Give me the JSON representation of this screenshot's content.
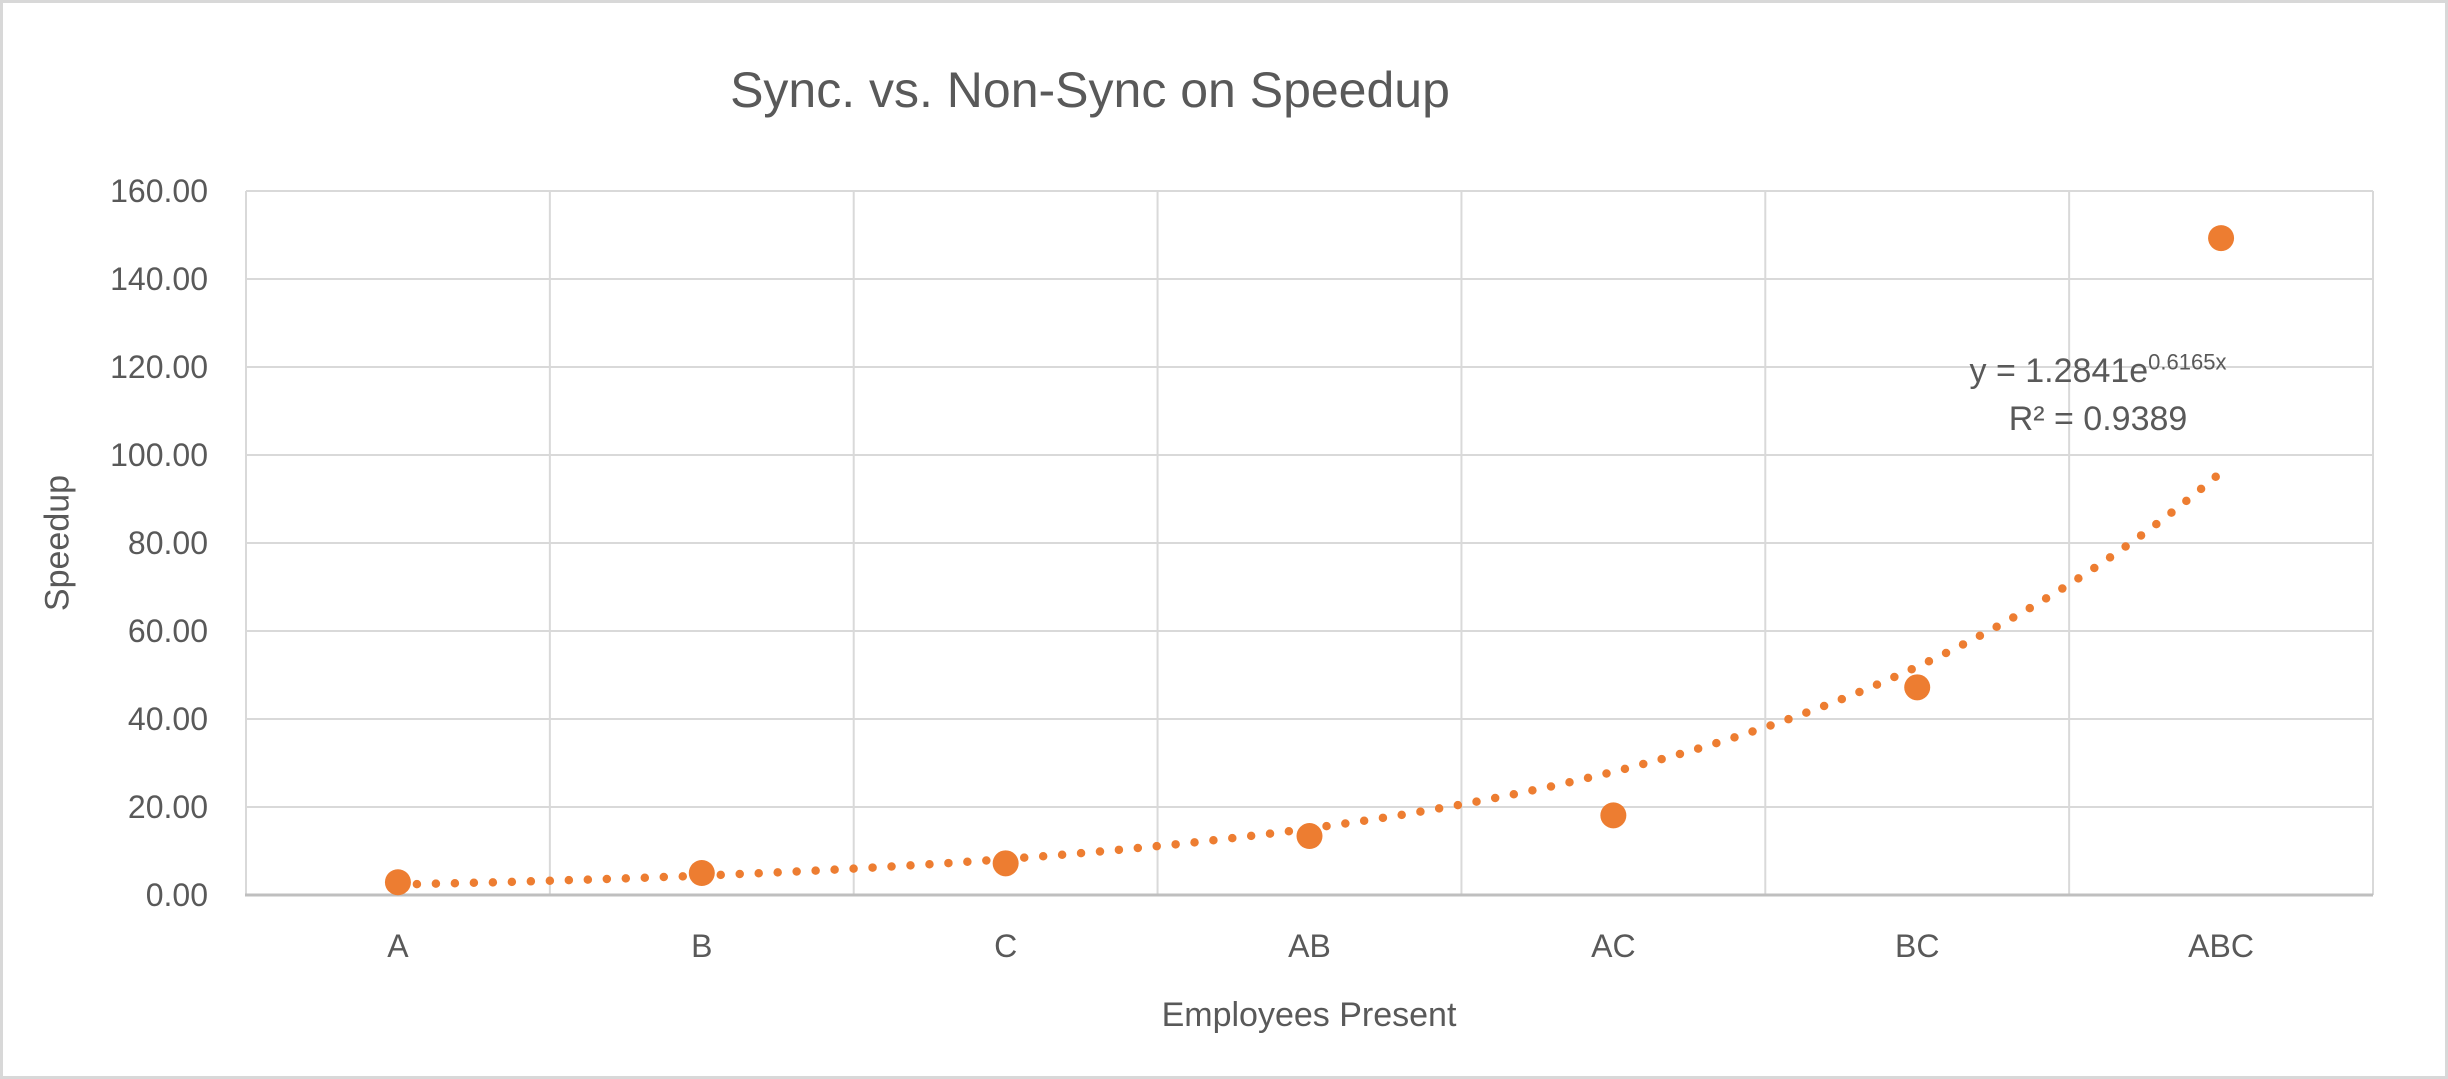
{
  "window": {
    "background_color": "#FFFFFF",
    "frame_border_color": "#D8D8D8"
  },
  "chart_data": {
    "type": "scatter",
    "title": "Sync. vs. Non-Sync on Speedup",
    "xlabel": "Employees Present",
    "ylabel": "Speedup",
    "categories": [
      "A",
      "B",
      "C",
      "AB",
      "AC",
      "BC",
      "ABC"
    ],
    "series": [
      {
        "name": "Speedup",
        "values": [
          2.9,
          5.0,
          7.2,
          13.4,
          18.1,
          47.2,
          149.3
        ],
        "color": "#ED7D31",
        "marker": "circle"
      }
    ],
    "ylim": [
      0,
      160
    ],
    "ytick_step": 20,
    "ytick_labels": [
      "160.00",
      "140.00",
      "120.00",
      "100.00",
      "80.00",
      "60.00",
      "40.00",
      "20.00",
      "0.00"
    ],
    "grid": true,
    "legend": "none",
    "gridline_color": "#D9D9D9",
    "axis_line_color": "#BFBFBF",
    "text_color": "#595959",
    "trendline": {
      "type": "exponential",
      "coefficient": 1.2841,
      "exponent_coefficient": 0.6165,
      "r_squared": 0.9389,
      "style": "dotted",
      "color": "#ED7D31",
      "label": {
        "base": "y = 1.2841e",
        "exponent": "0.6165x",
        "r2_text": "R² = 0.9389"
      }
    }
  }
}
